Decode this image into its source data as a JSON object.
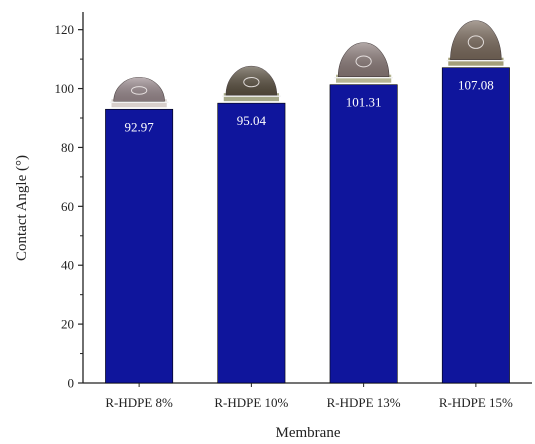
{
  "chart_data": {
    "type": "bar",
    "categories": [
      "R-HDPE 8%",
      "R-HDPE 10%",
      "R-HDPE 13%",
      "R-HDPE 15%"
    ],
    "values": [
      92.97,
      95.04,
      101.31,
      107.08
    ],
    "value_labels": [
      "92.97",
      "95.04",
      "101.31",
      "107.08"
    ],
    "xlabel": "Membrane",
    "ylabel": "Contact Angle (°)",
    "ylim": [
      0,
      126
    ],
    "yticks": [
      0,
      20,
      40,
      60,
      80,
      100,
      120
    ],
    "minor_yticks": [
      10,
      30,
      50,
      70,
      90,
      110
    ],
    "grid": false,
    "legend": "none",
    "bar_color": "#0f159c",
    "bar_edge_color": "#000000",
    "droplet_images": [
      {
        "shape": "droplet-photo",
        "base_color": "#d8d0cc",
        "drop_color": "#9a8a8e"
      },
      {
        "shape": "droplet-photo",
        "base_color": "#a6a888",
        "drop_color": "#5a5040"
      },
      {
        "shape": "droplet-photo",
        "base_color": "#b6b694",
        "drop_color": "#8a7a78"
      },
      {
        "shape": "droplet-photo",
        "base_color": "#a4a07a",
        "drop_color": "#7a6a5c"
      }
    ]
  }
}
